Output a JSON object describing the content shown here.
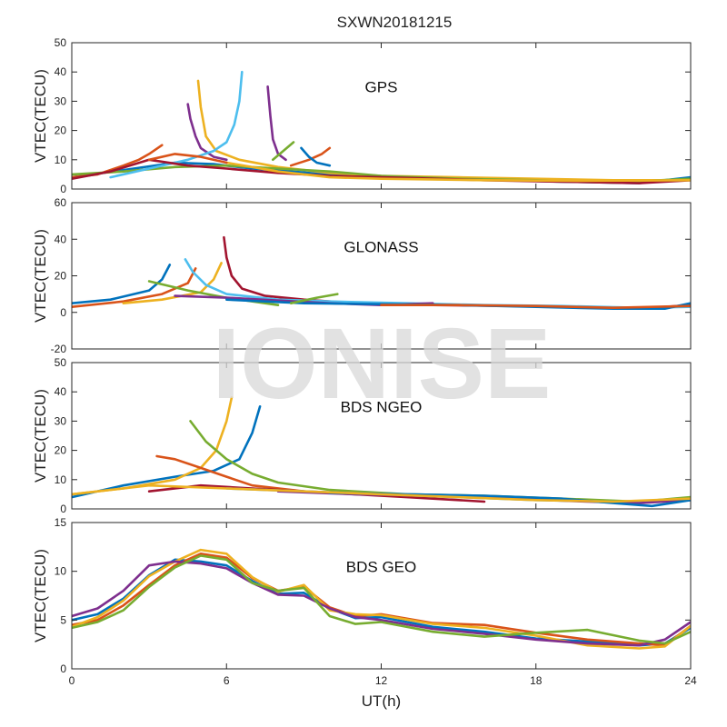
{
  "figure": {
    "title": "SXWN20181215",
    "watermark": "IONISE"
  },
  "chart_data": [
    {
      "type": "line",
      "panel_label": "GPS",
      "ylabel": "VTEC(TECU)",
      "xlim": [
        0,
        24
      ],
      "ylim": [
        0,
        50
      ],
      "yticks": [
        0,
        10,
        20,
        30,
        40,
        50
      ],
      "series": [
        {
          "color": "#0072BD",
          "x": [
            0,
            2,
            4,
            5.5,
            7,
            8.5,
            10,
            13,
            16,
            19,
            22,
            24
          ],
          "y": [
            4,
            6.5,
            9,
            8.5,
            7,
            6,
            5,
            4,
            3.2,
            2.5,
            2,
            4
          ]
        },
        {
          "color": "#D95319",
          "x": [
            0,
            1,
            2,
            2.6,
            3,
            3.5
          ],
          "y": [
            4,
            5,
            8,
            10,
            12,
            15
          ]
        },
        {
          "color": "#EDB120",
          "x": [
            4.9,
            5.0,
            5.2,
            5.6,
            6.5,
            8,
            10,
            12,
            15,
            18,
            21,
            24
          ],
          "y": [
            37,
            28,
            18,
            13,
            10,
            7.5,
            5.5,
            4.5,
            4,
            3.5,
            3,
            3
          ]
        },
        {
          "color": "#7E2F8E",
          "x": [
            4.5,
            4.6,
            4.8,
            5.0,
            5.5,
            6
          ],
          "y": [
            29,
            24,
            18,
            14,
            11,
            10
          ]
        },
        {
          "color": "#77AC30",
          "x": [
            0,
            2,
            4,
            6,
            8,
            10,
            12,
            15,
            18,
            21,
            24
          ],
          "y": [
            5,
            6,
            7.5,
            8,
            7,
            6,
            4.5,
            3.5,
            3,
            2.2,
            3.5
          ]
        },
        {
          "color": "#4DBEEE",
          "x": [
            1.5,
            3,
            4.5,
            5.5,
            6,
            6.3,
            6.5,
            6.6
          ],
          "y": [
            4,
            7,
            10,
            13,
            16,
            22,
            30,
            40
          ]
        },
        {
          "color": "#A2142F",
          "x": [
            0,
            1.5,
            3,
            4.5,
            6,
            8,
            10,
            13,
            16,
            19,
            22,
            24
          ],
          "y": [
            3.5,
            6,
            10,
            8,
            7,
            5.5,
            4.5,
            3.8,
            3,
            2.5,
            2,
            3
          ]
        },
        {
          "color": "#7E2F8E",
          "x": [
            7.6,
            7.7,
            7.8,
            8.0,
            8.3
          ],
          "y": [
            35,
            25,
            17,
            12,
            10
          ]
        },
        {
          "color": "#D95319",
          "x": [
            8.5,
            9.2,
            9.7,
            10.0
          ],
          "y": [
            8,
            10,
            12,
            14
          ]
        },
        {
          "color": "#77AC30",
          "x": [
            7.8,
            8.2,
            8.6
          ],
          "y": [
            10,
            13,
            16
          ]
        },
        {
          "color": "#0072BD",
          "x": [
            8.9,
            9.2,
            9.5,
            10
          ],
          "y": [
            14,
            11,
            9,
            8
          ]
        },
        {
          "color": "#EDB120",
          "x": [
            6,
            8,
            10,
            12,
            16,
            20,
            24
          ],
          "y": [
            9,
            6,
            4,
            3.5,
            3,
            2.8,
            3
          ]
        },
        {
          "color": "#D95319",
          "x": [
            3,
            4,
            5,
            6
          ],
          "y": [
            10,
            12,
            11,
            9
          ]
        }
      ]
    },
    {
      "type": "line",
      "panel_label": "GLONASS",
      "ylabel": "VTEC(TECU)",
      "xlim": [
        0,
        24
      ],
      "ylim": [
        -20,
        60
      ],
      "yticks": [
        -20,
        0,
        20,
        40,
        60
      ],
      "series": [
        {
          "color": "#0072BD",
          "x": [
            0,
            1.5,
            3,
            3.5,
            3.8
          ],
          "y": [
            5,
            7,
            12,
            18,
            26
          ]
        },
        {
          "color": "#D95319",
          "x": [
            0,
            2,
            3.5,
            4.5,
            4.8
          ],
          "y": [
            3,
            6,
            10,
            16,
            24
          ]
        },
        {
          "color": "#EDB120",
          "x": [
            2,
            3.5,
            5,
            5.5,
            5.8
          ],
          "y": [
            5,
            7,
            11,
            18,
            27
          ]
        },
        {
          "color": "#A2142F",
          "x": [
            5.9,
            6.0,
            6.2,
            6.6,
            7.5,
            9,
            11,
            14,
            17,
            20,
            22,
            24
          ],
          "y": [
            41,
            30,
            20,
            13,
            9,
            7,
            5,
            4,
            3.5,
            3,
            2,
            4
          ]
        },
        {
          "color": "#4DBEEE",
          "x": [
            4.4,
            4.7,
            5.2,
            6,
            8,
            10,
            13,
            16,
            19,
            22,
            24
          ],
          "y": [
            29,
            22,
            15,
            10,
            7,
            6,
            5,
            4,
            3.5,
            2.5,
            3
          ]
        },
        {
          "color": "#77AC30",
          "x": [
            3,
            4.5,
            6,
            8
          ],
          "y": [
            17,
            12,
            8,
            4
          ]
        },
        {
          "color": "#7E2F8E",
          "x": [
            4,
            6,
            8,
            10,
            12,
            14
          ],
          "y": [
            9,
            8,
            6.5,
            5,
            4,
            5
          ]
        },
        {
          "color": "#0072BD",
          "x": [
            6,
            9,
            12,
            15,
            18,
            21,
            23,
            24
          ],
          "y": [
            7,
            5,
            4.5,
            4,
            3,
            2,
            2,
            5
          ]
        },
        {
          "color": "#77AC30",
          "x": [
            8.5,
            9.5,
            10.3
          ],
          "y": [
            5,
            8,
            10
          ]
        },
        {
          "color": "#D95319",
          "x": [
            12,
            15,
            18,
            21,
            24
          ],
          "y": [
            4,
            4,
            3.5,
            2.5,
            3.5
          ]
        }
      ]
    },
    {
      "type": "line",
      "panel_label": "BDS NGEO",
      "ylabel": "VTEC(TECU)",
      "xlim": [
        0,
        24
      ],
      "ylim": [
        0,
        50
      ],
      "yticks": [
        0,
        10,
        20,
        30,
        40,
        50
      ],
      "series": [
        {
          "color": "#0072BD",
          "x": [
            0,
            2,
            4,
            5.5,
            6.5,
            7,
            7.3
          ],
          "y": [
            4,
            8,
            11,
            13,
            17,
            26,
            35
          ]
        },
        {
          "color": "#EDB120",
          "x": [
            0,
            2,
            4,
            5,
            5.6,
            6.0,
            6.2
          ],
          "y": [
            5,
            7,
            10,
            14,
            20,
            30,
            38
          ]
        },
        {
          "color": "#77AC30",
          "x": [
            4.6,
            5.2,
            6,
            7,
            8,
            10,
            13,
            16,
            19,
            22,
            24
          ],
          "y": [
            30,
            23,
            17,
            12,
            9,
            6.5,
            5,
            4.5,
            3.5,
            2.5,
            4
          ]
        },
        {
          "color": "#D95319",
          "x": [
            3.3,
            4,
            5,
            6,
            7,
            9,
            12,
            15
          ],
          "y": [
            18,
            17,
            14,
            11,
            8,
            6,
            5,
            4
          ]
        },
        {
          "color": "#A2142F",
          "x": [
            3,
            5,
            7,
            9,
            11,
            13,
            15,
            16
          ],
          "y": [
            6,
            8,
            7,
            6,
            5,
            4,
            3,
            2.5
          ]
        },
        {
          "color": "#4DBEEE",
          "x": [
            6,
            9,
            12,
            15,
            18,
            21,
            24
          ],
          "y": [
            7,
            6,
            5,
            4,
            3,
            2.5,
            3
          ]
        },
        {
          "color": "#7E2F8E",
          "x": [
            8,
            11,
            14,
            17,
            20,
            22,
            24
          ],
          "y": [
            6,
            5,
            4.5,
            3.5,
            2.5,
            2,
            3
          ]
        },
        {
          "color": "#0072BD",
          "x": [
            10,
            13,
            16,
            19,
            21,
            22.5,
            24
          ],
          "y": [
            5.5,
            5,
            4.5,
            3.5,
            2,
            1,
            3
          ]
        },
        {
          "color": "#EDB120",
          "x": [
            0,
            3,
            6,
            9,
            12,
            15,
            18,
            21,
            24
          ],
          "y": [
            5,
            8,
            7,
            6,
            5,
            4,
            3,
            2.5,
            3.5
          ]
        }
      ]
    },
    {
      "type": "line",
      "panel_label": "BDS GEO",
      "ylabel": "VTEC(TECU)",
      "xlabel": "UT(h)",
      "xlim": [
        0,
        24
      ],
      "xticks": [
        0,
        6,
        12,
        18,
        24
      ],
      "ylim": [
        0,
        15
      ],
      "yticks": [
        0,
        5,
        10,
        15
      ],
      "series": [
        {
          "color": "#0072BD",
          "x": [
            0,
            1,
            2,
            3,
            4,
            5,
            6,
            7,
            8,
            9,
            10,
            11,
            12,
            14,
            16,
            18,
            20,
            22,
            23,
            24
          ],
          "y": [
            5.0,
            5.6,
            7.2,
            9.6,
            11.2,
            11.0,
            10.6,
            9.0,
            7.7,
            7.8,
            6.2,
            5.2,
            5.3,
            4.3,
            3.8,
            3.1,
            2.8,
            2.4,
            2.6,
            4.2
          ]
        },
        {
          "color": "#D95319",
          "x": [
            0,
            1,
            2,
            3,
            4,
            5,
            6,
            7,
            8,
            9,
            10,
            11,
            12,
            14,
            16,
            18,
            20,
            22,
            23,
            24
          ],
          "y": [
            4.5,
            5.0,
            6.5,
            8.6,
            10.6,
            11.8,
            11.4,
            9.3,
            8.0,
            8.4,
            6.3,
            5.4,
            5.6,
            4.7,
            4.5,
            3.7,
            3.0,
            2.6,
            2.4,
            4.4
          ]
        },
        {
          "color": "#EDB120",
          "x": [
            0,
            1,
            2,
            3,
            4,
            5,
            6,
            7,
            8,
            9,
            10,
            11,
            12,
            14,
            16,
            18,
            20,
            22,
            23,
            24
          ],
          "y": [
            4.3,
            5.3,
            7.0,
            9.5,
            11.0,
            12.2,
            11.8,
            9.4,
            7.9,
            8.6,
            6.0,
            5.6,
            5.5,
            4.6,
            4.2,
            3.4,
            2.4,
            2.1,
            2.3,
            4.4
          ]
        },
        {
          "color": "#7E2F8E",
          "x": [
            0,
            1,
            2,
            3,
            4,
            5,
            6,
            7,
            8,
            9,
            10,
            11,
            12,
            14,
            16,
            18,
            20,
            22,
            23,
            24
          ],
          "y": [
            5.4,
            6.2,
            8.0,
            10.6,
            11.0,
            10.8,
            10.3,
            8.8,
            7.6,
            7.5,
            6.2,
            5.3,
            5.0,
            4.1,
            3.6,
            3.0,
            2.6,
            2.4,
            3.0,
            4.8
          ]
        },
        {
          "color": "#77AC30",
          "x": [
            0,
            1,
            2,
            3,
            4,
            5,
            6,
            7,
            8,
            9,
            10,
            11,
            12,
            14,
            16,
            18,
            20,
            22,
            23,
            24
          ],
          "y": [
            4.2,
            4.8,
            6.0,
            8.4,
            10.4,
            11.6,
            11.2,
            8.8,
            8.0,
            8.3,
            5.4,
            4.6,
            4.8,
            3.8,
            3.3,
            3.7,
            4.0,
            2.9,
            2.6,
            3.8
          ]
        }
      ]
    }
  ]
}
